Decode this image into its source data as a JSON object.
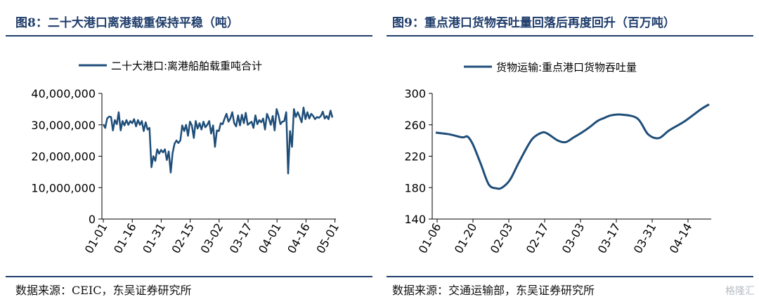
{
  "left": {
    "title": "图8：二十大港口离港载重保持平稳（吨）",
    "source": "数据来源：CEIC，东吴证券研究所"
  },
  "right": {
    "title": "图9：重点港口货物吞吐量回落后再度回升（百万吨）",
    "source": "数据来源：交通运输部，东吴证券研究所"
  },
  "watermark": "格隆汇",
  "colors": {
    "line": "#1f4e79",
    "title": "#1f3d6b"
  },
  "chart_data": [
    {
      "type": "line",
      "title": "",
      "xlabel": "",
      "ylabel": "",
      "ylim": [
        0,
        40000000
      ],
      "yticks": [
        "0",
        "10,000,000",
        "20,000,000",
        "30,000,000",
        "40,000,000"
      ],
      "xticks": [
        "01-01",
        "01-16",
        "01-31",
        "02-15",
        "03-02",
        "03-17",
        "04-01",
        "04-16",
        "05-01"
      ],
      "legend_position": "top",
      "grid": false,
      "series": [
        {
          "name": "二十大港口:离港船舶载重吨合计",
          "x_start": "01-01",
          "x_end": "05-03",
          "values": [
            30200000,
            29000000,
            32000000,
            32600000,
            32500000,
            28200000,
            31500000,
            30200000,
            34000000,
            28200000,
            31200000,
            29800000,
            31500000,
            30000000,
            31200000,
            30500000,
            31800000,
            29500000,
            31500000,
            30000000,
            31200000,
            28000000,
            30800000,
            28500000,
            29000000,
            16500000,
            20000000,
            18500000,
            22200000,
            20800000,
            22000000,
            21200000,
            22200000,
            18800000,
            21500000,
            14800000,
            21000000,
            24000000,
            25000000,
            24200000,
            25000000,
            29800000,
            28000000,
            30000000,
            26500000,
            31000000,
            29800000,
            25800000,
            31200000,
            28800000,
            30500000,
            28500000,
            31000000,
            29200000,
            30000000,
            31200000,
            27200000,
            29800000,
            23000000,
            28200000,
            28000000,
            30500000,
            30200000,
            32000000,
            33500000,
            31000000,
            32000000,
            34000000,
            30500000,
            29500000,
            33000000,
            29800000,
            33200000,
            30500000,
            33800000,
            30000000,
            30500000,
            31000000,
            29000000,
            33000000,
            30200000,
            31500000,
            30800000,
            32000000,
            28500000,
            33500000,
            32000000,
            30000000,
            32800000,
            28200000,
            35000000,
            33000000,
            30200000,
            31000000,
            31200000,
            34000000,
            14500000,
            28000000,
            23000000,
            35000000,
            32500000,
            34000000,
            32500000,
            30800000,
            35500000,
            31800000,
            34000000,
            32000000,
            33500000,
            32800000,
            31800000,
            32500000,
            32200000,
            32800000,
            34200000,
            32000000,
            32800000,
            31800000,
            34500000,
            32300000
          ]
        }
      ]
    },
    {
      "type": "line",
      "title": "",
      "xlabel": "",
      "ylabel": "",
      "ylim": [
        140,
        300
      ],
      "yticks": [
        "140",
        "180",
        "220",
        "260",
        "300"
      ],
      "xticks": [
        "01-06",
        "01-20",
        "02-03",
        "02-17",
        "03-03",
        "03-17",
        "03-31",
        "04-14"
      ],
      "legend_position": "top",
      "grid": false,
      "series": [
        {
          "name": "货物运输:重点港口货物吞吐量",
          "x": [
            0,
            5,
            10,
            12,
            14,
            17,
            20,
            23,
            25,
            28,
            31,
            35,
            37,
            40,
            42,
            46,
            49,
            52,
            55,
            58,
            61,
            63,
            66,
            70,
            76,
            80,
            84,
            88,
            94,
            100,
            103
          ],
          "values": [
            250,
            248,
            244,
            245,
            235,
            210,
            184,
            179,
            180,
            190,
            210,
            235,
            244,
            250,
            249,
            240,
            238,
            244,
            250,
            257,
            265,
            268,
            272,
            273,
            268,
            248,
            243,
            253,
            265,
            280,
            286
          ]
        }
      ]
    }
  ]
}
